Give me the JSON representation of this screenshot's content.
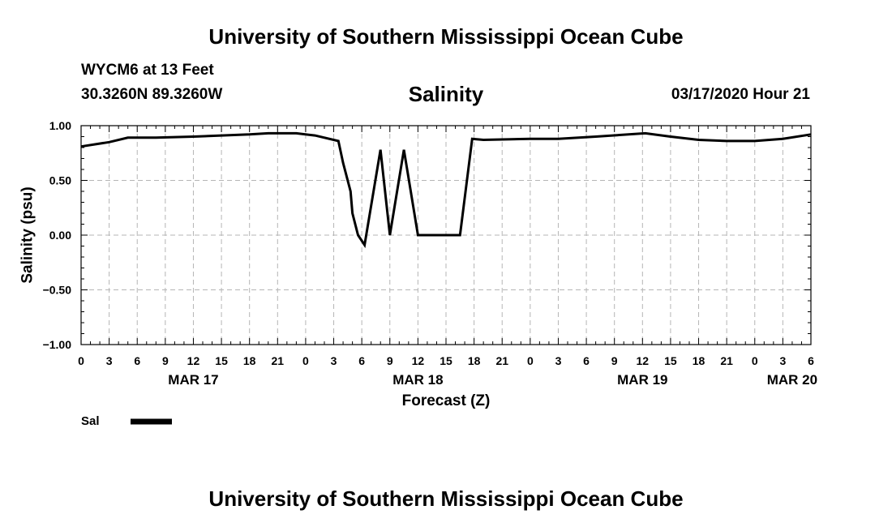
{
  "header": {
    "title": "University of Southern Mississippi Ocean Cube",
    "station": "WYCM6 at 13 Feet",
    "location": "30.3260N 89.3260W",
    "variable": "Salinity",
    "datetime": "03/17/2020 Hour 21"
  },
  "footer": {
    "title": "University of Southern Mississippi Ocean Cube"
  },
  "chart_data": {
    "type": "line",
    "title": "Salinity",
    "xlabel": "Forecast (Z)",
    "ylabel": "Salinity (psu)",
    "ylim": [
      -1.0,
      1.0
    ],
    "yticks": [
      -1.0,
      -0.5,
      0.0,
      0.5,
      1.0
    ],
    "ytick_labels": [
      "−1.00",
      "−0.50",
      "0.00",
      "0.50",
      "1.00"
    ],
    "xlim": [
      0,
      78
    ],
    "x_unit": "hours since 03/17 00Z",
    "xtick_hours": [
      0,
      3,
      6,
      9,
      12,
      15,
      18,
      21,
      24,
      27,
      30,
      33,
      36,
      39,
      42,
      45,
      48,
      51,
      54,
      57,
      60,
      63,
      66,
      69,
      72,
      75,
      78
    ],
    "xtick_labels": [
      "0",
      "3",
      "6",
      "9",
      "12",
      "15",
      "18",
      "21",
      "0",
      "3",
      "6",
      "9",
      "12",
      "15",
      "18",
      "21",
      "0",
      "3",
      "6",
      "9",
      "12",
      "15",
      "18",
      "21",
      "0",
      "3",
      "6"
    ],
    "date_labels": [
      {
        "label": "MAR 17",
        "hour": 12
      },
      {
        "label": "MAR 18",
        "hour": 36
      },
      {
        "label": "MAR 19",
        "hour": 60
      },
      {
        "label": "MAR 20",
        "hour": 76
      }
    ],
    "grid": true,
    "legend_position": "bottom-left",
    "series": [
      {
        "name": "Sal",
        "color": "#000000",
        "x": [
          0,
          3,
          5,
          8,
          12,
          15,
          18,
          20,
          23,
          25,
          27.5,
          28,
          28.8,
          29,
          29.6,
          30.3,
          32,
          33,
          34.5,
          36,
          36.8,
          40.5,
          41.8,
          43,
          48,
          51,
          55,
          60.3,
          63,
          66,
          69,
          72,
          75,
          78
        ],
        "y": [
          0.81,
          0.85,
          0.89,
          0.89,
          0.9,
          0.91,
          0.92,
          0.93,
          0.93,
          0.91,
          0.86,
          0.66,
          0.4,
          0.2,
          0.0,
          -0.09,
          0.78,
          0.0,
          0.78,
          0.0,
          0.0,
          0.0,
          0.88,
          0.87,
          0.88,
          0.88,
          0.9,
          0.93,
          0.9,
          0.87,
          0.86,
          0.86,
          0.88,
          0.92
        ]
      }
    ]
  }
}
